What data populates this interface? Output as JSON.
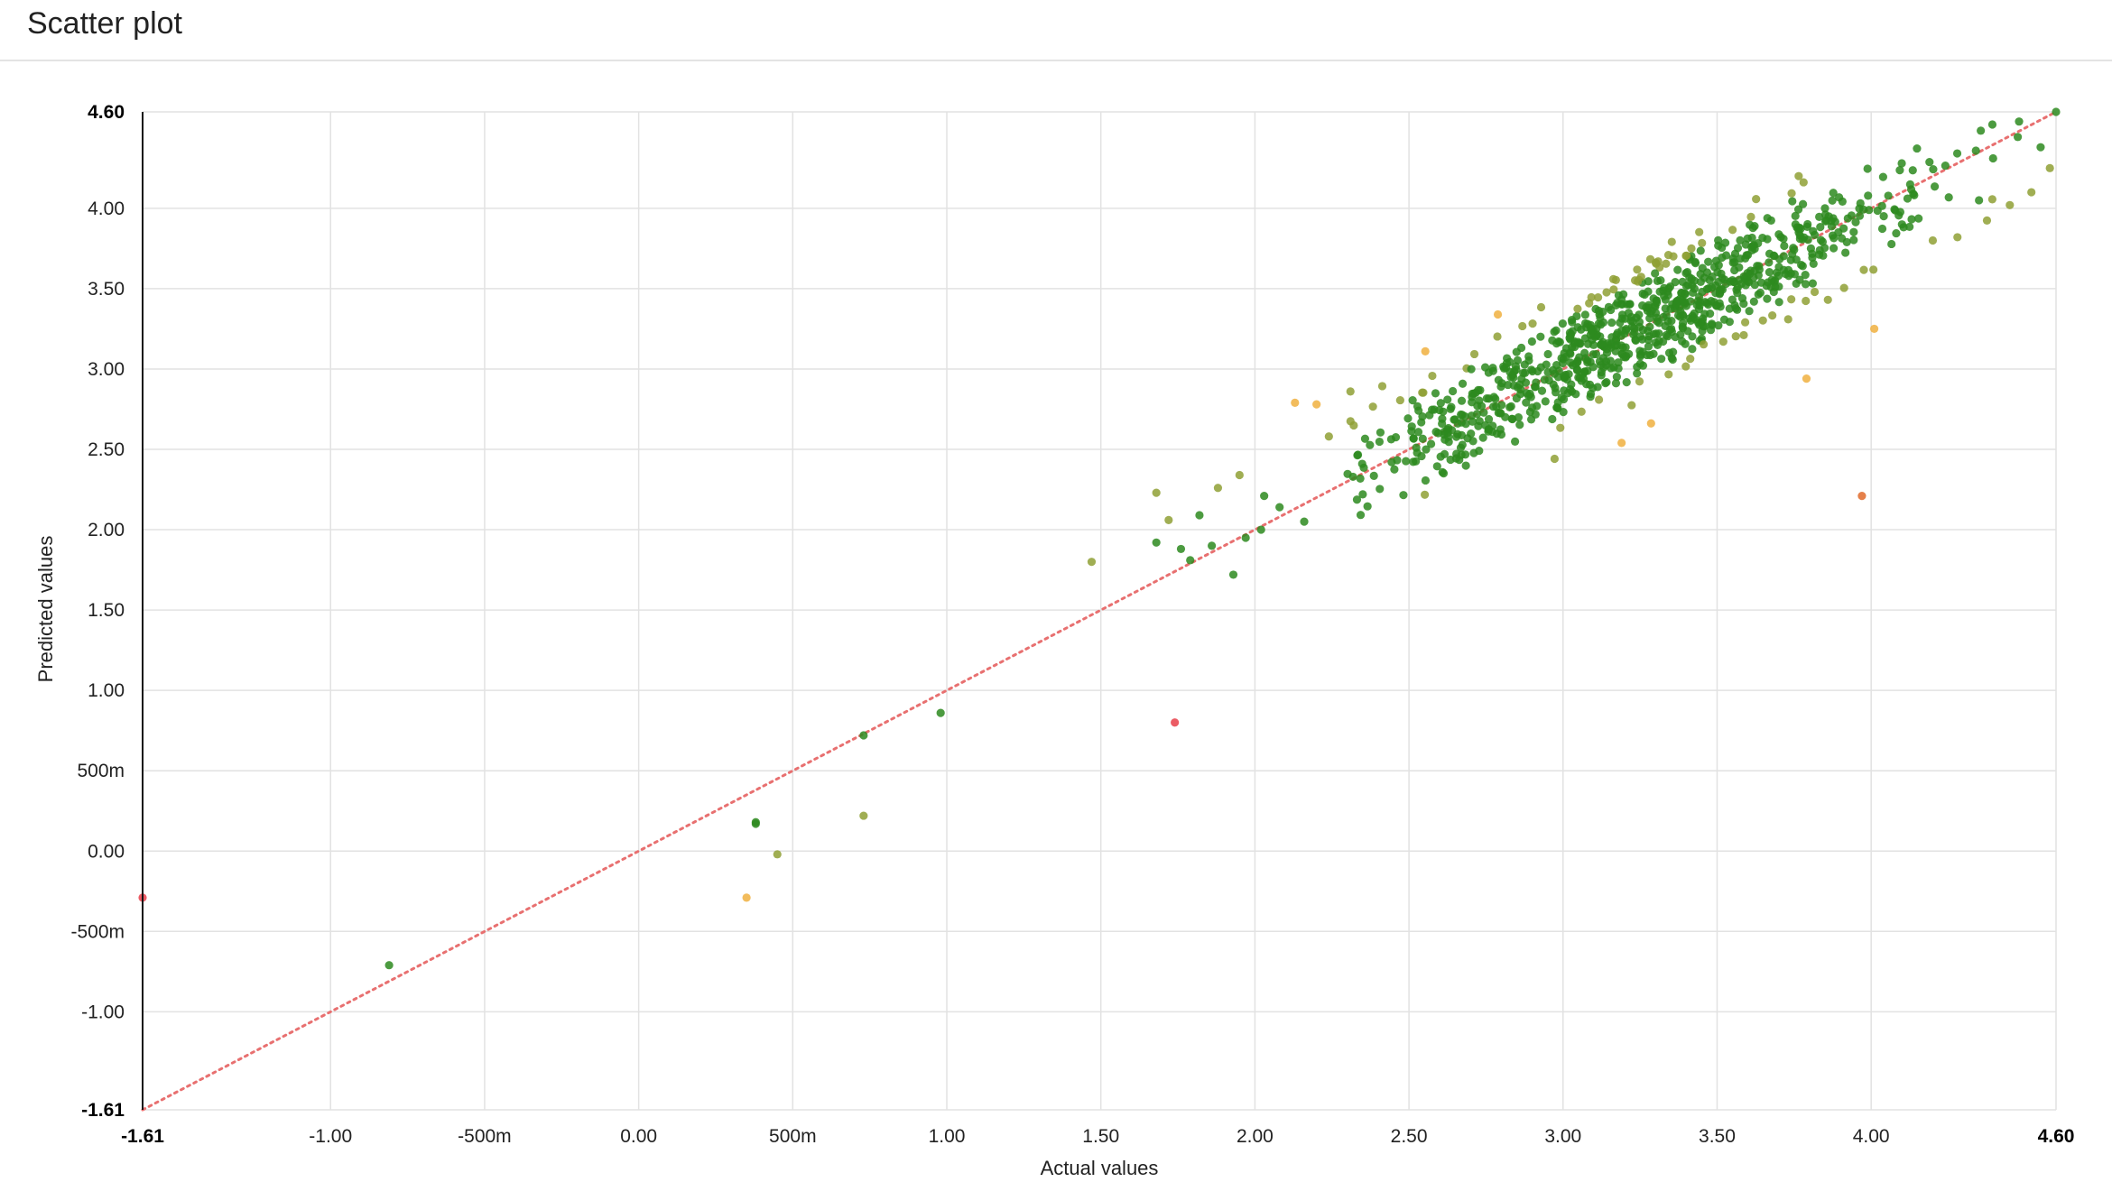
{
  "page": {
    "title": "Scatter plot"
  },
  "chart_data": {
    "type": "scatter",
    "title": "",
    "xlabel": "Actual values",
    "ylabel": "Predicted values",
    "xlim": [
      -1.61,
      4.6
    ],
    "ylim": [
      -1.61,
      4.6
    ],
    "x_ticks": [
      {
        "value": -1.61,
        "label": "-1.61",
        "bold": true
      },
      {
        "value": -1.0,
        "label": "-1.00"
      },
      {
        "value": -0.5,
        "label": "-500m"
      },
      {
        "value": 0.0,
        "label": "0.00"
      },
      {
        "value": 0.5,
        "label": "500m"
      },
      {
        "value": 1.0,
        "label": "1.00"
      },
      {
        "value": 1.5,
        "label": "1.50"
      },
      {
        "value": 2.0,
        "label": "2.00"
      },
      {
        "value": 2.5,
        "label": "2.50"
      },
      {
        "value": 3.0,
        "label": "3.00"
      },
      {
        "value": 3.5,
        "label": "3.50"
      },
      {
        "value": 4.0,
        "label": "4.00"
      },
      {
        "value": 4.6,
        "label": "4.60",
        "bold": true
      }
    ],
    "y_ticks": [
      {
        "value": -1.61,
        "label": "-1.61",
        "bold": true
      },
      {
        "value": -1.0,
        "label": "-1.00"
      },
      {
        "value": -0.5,
        "label": "-500m"
      },
      {
        "value": 0.0,
        "label": "0.00"
      },
      {
        "value": 0.5,
        "label": "500m"
      },
      {
        "value": 1.0,
        "label": "1.00"
      },
      {
        "value": 1.5,
        "label": "1.50"
      },
      {
        "value": 2.0,
        "label": "2.00"
      },
      {
        "value": 2.5,
        "label": "2.50"
      },
      {
        "value": 3.0,
        "label": "3.00"
      },
      {
        "value": 3.5,
        "label": "3.50"
      },
      {
        "value": 4.0,
        "label": "4.00"
      },
      {
        "value": 4.6,
        "label": "4.60",
        "bold": true
      }
    ],
    "grid": true,
    "reference_line": {
      "from": [
        -1.61,
        -1.61
      ],
      "to": [
        4.6,
        4.6
      ],
      "style": "dotted",
      "color": "#e87070"
    },
    "colors": {
      "near": "#2d8a1e",
      "mid": "#8fa035",
      "far": "#f0b040",
      "outlier": "#e8404a",
      "extreme": "#e06a2a"
    },
    "points": [
      {
        "x": -1.61,
        "y": -0.29
      },
      {
        "x": -0.81,
        "y": -0.71
      },
      {
        "x": 0.35,
        "y": -0.29
      },
      {
        "x": 0.38,
        "y": 0.17
      },
      {
        "x": 0.38,
        "y": 0.18
      },
      {
        "x": 0.45,
        "y": -0.02
      },
      {
        "x": 0.73,
        "y": 0.72
      },
      {
        "x": 0.73,
        "y": 0.22
      },
      {
        "x": 0.98,
        "y": 0.86
      },
      {
        "x": 1.47,
        "y": 1.8
      },
      {
        "x": 1.68,
        "y": 2.23
      },
      {
        "x": 1.68,
        "y": 1.92
      },
      {
        "x": 1.74,
        "y": 0.8
      },
      {
        "x": 1.72,
        "y": 2.06
      },
      {
        "x": 1.76,
        "y": 1.88
      },
      {
        "x": 1.79,
        "y": 1.81
      },
      {
        "x": 1.82,
        "y": 2.09
      },
      {
        "x": 1.86,
        "y": 1.9
      },
      {
        "x": 1.88,
        "y": 2.26
      },
      {
        "x": 1.93,
        "y": 1.72
      },
      {
        "x": 1.95,
        "y": 2.34
      },
      {
        "x": 1.97,
        "y": 1.95
      },
      {
        "x": 2.02,
        "y": 2.0
      },
      {
        "x": 2.03,
        "y": 2.21
      },
      {
        "x": 2.08,
        "y": 2.14
      },
      {
        "x": 2.13,
        "y": 2.79
      },
      {
        "x": 2.16,
        "y": 2.05
      },
      {
        "x": 2.2,
        "y": 2.78
      },
      {
        "x": 2.24,
        "y": 2.58
      },
      {
        "x": 2.31,
        "y": 2.86
      },
      {
        "x": 2.35,
        "y": 2.22
      },
      {
        "x": 3.19,
        "y": 2.54
      },
      {
        "x": 3.79,
        "y": 2.94
      },
      {
        "x": 3.97,
        "y": 2.21
      },
      {
        "x": 4.01,
        "y": 3.25
      },
      {
        "x": 4.48,
        "y": 4.54
      },
      {
        "x": 4.6,
        "y": 4.6
      },
      {
        "x": 4.58,
        "y": 4.25
      },
      {
        "x": 4.55,
        "y": 4.38
      },
      {
        "x": 4.52,
        "y": 4.1
      },
      {
        "x": 4.45,
        "y": 4.02
      },
      {
        "x": 4.35,
        "y": 4.05
      },
      {
        "x": 4.28,
        "y": 3.82
      },
      {
        "x": 4.2,
        "y": 3.8
      },
      {
        "x": 4.1,
        "y": 3.9
      }
    ],
    "cluster": {
      "count": 900,
      "x_range": [
        2.3,
        4.6
      ],
      "center_ratio": 0.95,
      "center_offset": 0.17,
      "spread": 0.17
    }
  }
}
